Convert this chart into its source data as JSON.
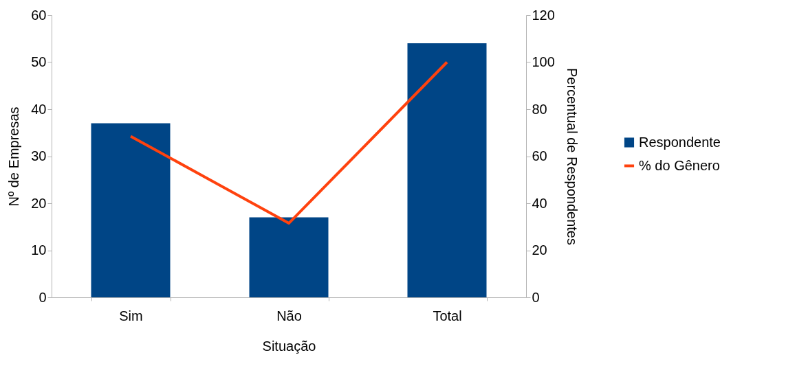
{
  "chart_data": {
    "type": "bar",
    "xlabel": "Situação",
    "ylabel": "Nº de Empresas",
    "y2label": "Percentual de Respondentes",
    "categories": [
      "Sim",
      "Não",
      "Total"
    ],
    "series": [
      {
        "name": "Respondente",
        "color": "#004586",
        "values": [
          37,
          17,
          54
        ]
      },
      {
        "name": "% do Gênero",
        "color": "#ff420e",
        "type": "line",
        "axis": "y2",
        "values": [
          68.5,
          31.5,
          100
        ]
      }
    ],
    "ylim": [
      0,
      60
    ],
    "yticks": [
      0,
      10,
      20,
      30,
      40,
      50,
      60
    ],
    "y2lim": [
      0,
      120
    ],
    "y2ticks": [
      0,
      20,
      40,
      60,
      80,
      100,
      120
    ],
    "legend": "right",
    "grid": false,
    "marker": "none"
  }
}
